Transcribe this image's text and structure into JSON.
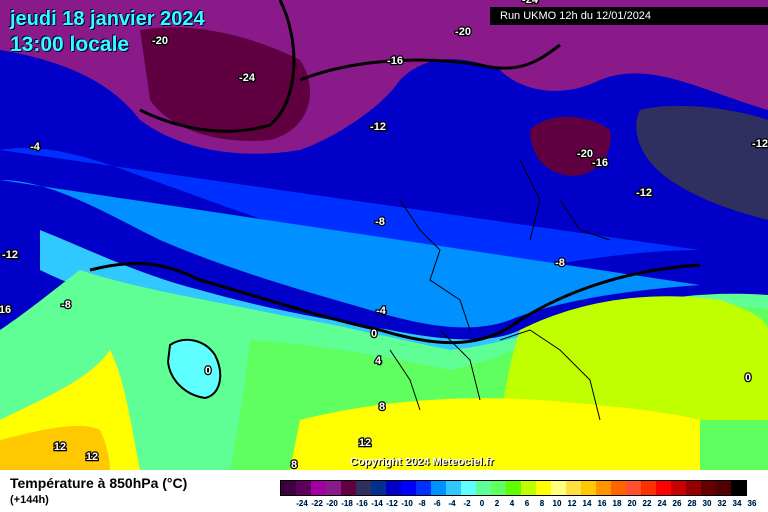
{
  "header": {
    "date": "jeudi 18 janvier 2024",
    "time": "13:00 locale",
    "run": "Run UKMO 12h du 12/01/2024"
  },
  "copyright": "Copyright 2024 Meteociel.fr",
  "legend": {
    "title": "Température à 850hPa (°C)",
    "subtitle": "(+144h)",
    "ticks": [
      "-24",
      "-22",
      "-20",
      "-18",
      "-16",
      "-14",
      "-12",
      "-10",
      "-8",
      "-6",
      "-4",
      "-2",
      "0",
      "2",
      "4",
      "6",
      "8",
      "10",
      "12",
      "14",
      "16",
      "18",
      "20",
      "22",
      "24",
      "26",
      "28",
      "30",
      "32",
      "34",
      "36"
    ],
    "colors": [
      "#3d0040",
      "#5c005c",
      "#a000a0",
      "#8a1a8a",
      "#600040",
      "#303060",
      "#003090",
      "#0000c8",
      "#0000ff",
      "#0030ff",
      "#0090ff",
      "#30c8ff",
      "#60ffff",
      "#60ff96",
      "#60ff60",
      "#60ff00",
      "#c0ff00",
      "#ffff00",
      "#ffff80",
      "#ffe040",
      "#ffc800",
      "#ff9600",
      "#ff6400",
      "#ff5030",
      "#ff3000",
      "#ff0000",
      "#c80000",
      "#960000",
      "#640000",
      "#500000",
      "#000000"
    ]
  },
  "contour_labels": [
    "-20",
    "-20",
    "-24",
    "-16",
    "-12",
    "-24",
    "-20",
    "-16",
    "-12",
    "-12",
    "-4",
    "-8",
    "-8",
    "-12",
    "-8",
    "16",
    "-4",
    "0",
    "4",
    "0",
    "8",
    "12",
    "12",
    "12",
    "8",
    "0"
  ]
}
